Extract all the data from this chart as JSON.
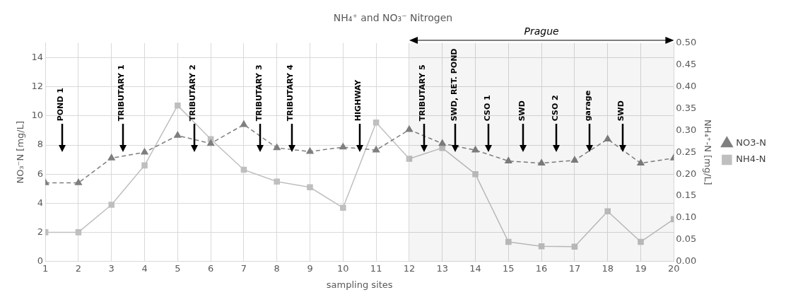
{
  "chart_data": {
    "type": "line",
    "title": "NH₄⁺ and NO₃⁻ Nitrogen",
    "xlabel": "sampling sites",
    "ylabel": "NO₃⁻N [mg/L]",
    "y2label": "NH₄⁺-N [mg/L]",
    "x": [
      1,
      2,
      3,
      4,
      5,
      6,
      7,
      8,
      9,
      10,
      11,
      12,
      13,
      14,
      15,
      16,
      17,
      18,
      19,
      20
    ],
    "series": [
      {
        "name": "NO3-N",
        "color": "#7f7f7f",
        "marker": "triangle",
        "line_style": "dashed",
        "values": [
          5.4,
          5.4,
          7.1,
          7.5,
          8.65,
          8.1,
          9.4,
          7.8,
          7.55,
          7.85,
          7.65,
          9.05,
          8.1,
          7.65,
          6.9,
          6.75,
          6.95,
          8.4,
          6.75,
          7.1
        ]
      },
      {
        "name": "NH4-N",
        "color": "#bfbfbf",
        "marker": "square",
        "line_style": "solid",
        "axis": "y2",
        "values": [
          0.067,
          0.067,
          0.13,
          0.22,
          0.357,
          0.28,
          0.21,
          0.183,
          0.17,
          0.123,
          0.318,
          0.235,
          0.26,
          0.2,
          0.045,
          0.035,
          0.034,
          0.115,
          0.045,
          0.097
        ]
      }
    ],
    "xlim": [
      1,
      20
    ],
    "xticks": [
      1,
      2,
      3,
      4,
      5,
      6,
      7,
      8,
      9,
      10,
      11,
      12,
      13,
      14,
      15,
      16,
      17,
      18,
      19,
      20
    ],
    "ylim": [
      0,
      15
    ],
    "yticks": [
      0,
      2,
      4,
      6,
      8,
      10,
      12,
      14
    ],
    "y2lim": [
      0,
      0.5
    ],
    "y2ticks": [
      {
        "value": 0,
        "label": "0.00"
      },
      {
        "value": 0.05,
        "label": "0.05"
      },
      {
        "value": 0.1,
        "label": "0.10"
      },
      {
        "value": 0.15,
        "label": "0.15"
      },
      {
        "value": 0.2,
        "label": "0.20"
      },
      {
        "value": 0.25,
        "label": "0.25"
      },
      {
        "value": 0.3,
        "label": "0.30"
      },
      {
        "value": 0.35,
        "label": "0.35"
      },
      {
        "value": 0.4,
        "label": "0.40"
      },
      {
        "value": 0.45,
        "label": "0.45"
      },
      {
        "value": 0.5,
        "label": "0.50"
      }
    ],
    "grid": true,
    "legend": "right",
    "bands": [
      {
        "axis": "x",
        "from": 12,
        "to": 20,
        "label": "Prague"
      }
    ],
    "ref_lines": [
      {
        "axis": "x",
        "value": 1.5,
        "label": "POND 1"
      },
      {
        "axis": "x",
        "value": 3.35,
        "label": "TRIBUTARY 1"
      },
      {
        "axis": "x",
        "value": 5.5,
        "label": "TRIBUTARY 2"
      },
      {
        "axis": "x",
        "value": 7.5,
        "label": "TRIBUTARY 3"
      },
      {
        "axis": "x",
        "value": 8.45,
        "label": "TRIBUTARY 4"
      },
      {
        "axis": "x",
        "value": 10.5,
        "label": "HIGHWAY"
      },
      {
        "axis": "x",
        "value": 12.45,
        "label": "TRIBUTARY 5"
      },
      {
        "axis": "x",
        "value": 13.4,
        "label": "SWD, RET. POND"
      },
      {
        "axis": "x",
        "value": 14.4,
        "label": "CSO 1"
      },
      {
        "axis": "x",
        "value": 15.45,
        "label": "SWD"
      },
      {
        "axis": "x",
        "value": 16.45,
        "label": "CSO 2"
      },
      {
        "axis": "x",
        "value": 17.45,
        "label": "garage"
      },
      {
        "axis": "x",
        "value": 18.45,
        "label": "SWD"
      }
    ]
  }
}
